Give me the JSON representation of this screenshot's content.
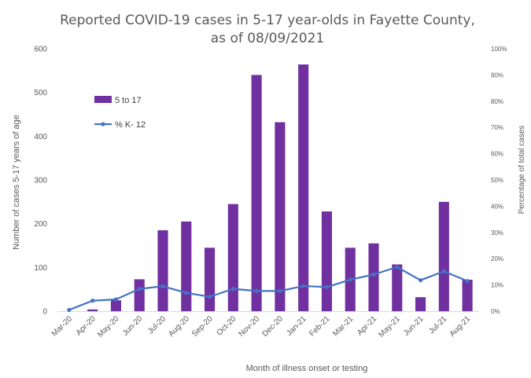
{
  "chart_data": {
    "type": "bar",
    "title": [
      "Reported COVID-19 cases in 5-17 year-olds in Fayette County,",
      "as of 08/09/2021"
    ],
    "xlabel": "Month of illness onset or testing",
    "ylabel": "Number of cases 5-17 years of age",
    "y2label": "Percentage of total cases",
    "categories": [
      "Mar-20",
      "Apr-20",
      "May-20",
      "Jun-20",
      "Jul-20",
      "Aug-20",
      "Sep-20",
      "Oct-20",
      "Nov-20",
      "Dec-20",
      "Jan-21",
      "Feb-21",
      "Mar-21",
      "Apr-21",
      "May-21",
      "Jun-21",
      "Jul-21",
      "Aug-21"
    ],
    "ylim": [
      0,
      600
    ],
    "yticks": [
      "0",
      "100",
      "200",
      "300",
      "400",
      "500",
      "600"
    ],
    "y2lim": [
      0,
      100
    ],
    "y2ticks": [
      "0%",
      "10%",
      "20%",
      "30%",
      "40%",
      "50%",
      "60%",
      "70%",
      "80%",
      "90%",
      "100%"
    ],
    "series": [
      {
        "name": "5 to 17",
        "type": "bar",
        "axis": "left",
        "color": "#7030A0",
        "values": [
          0,
          4,
          25,
          73,
          185,
          205,
          145,
          245,
          540,
          432,
          564,
          228,
          145,
          155,
          107,
          32,
          250,
          72
        ]
      },
      {
        "name": "% K- 12",
        "type": "line",
        "axis": "right",
        "color": "#4472C4",
        "values": [
          0.5,
          4,
          4.5,
          8.5,
          9.5,
          7,
          5.5,
          8.5,
          7.7,
          7.7,
          9.6,
          9.2,
          12,
          14,
          16.8,
          11.8,
          15.2,
          11.5
        ]
      }
    ],
    "grid": false,
    "legend": "top-left inside plot"
  }
}
